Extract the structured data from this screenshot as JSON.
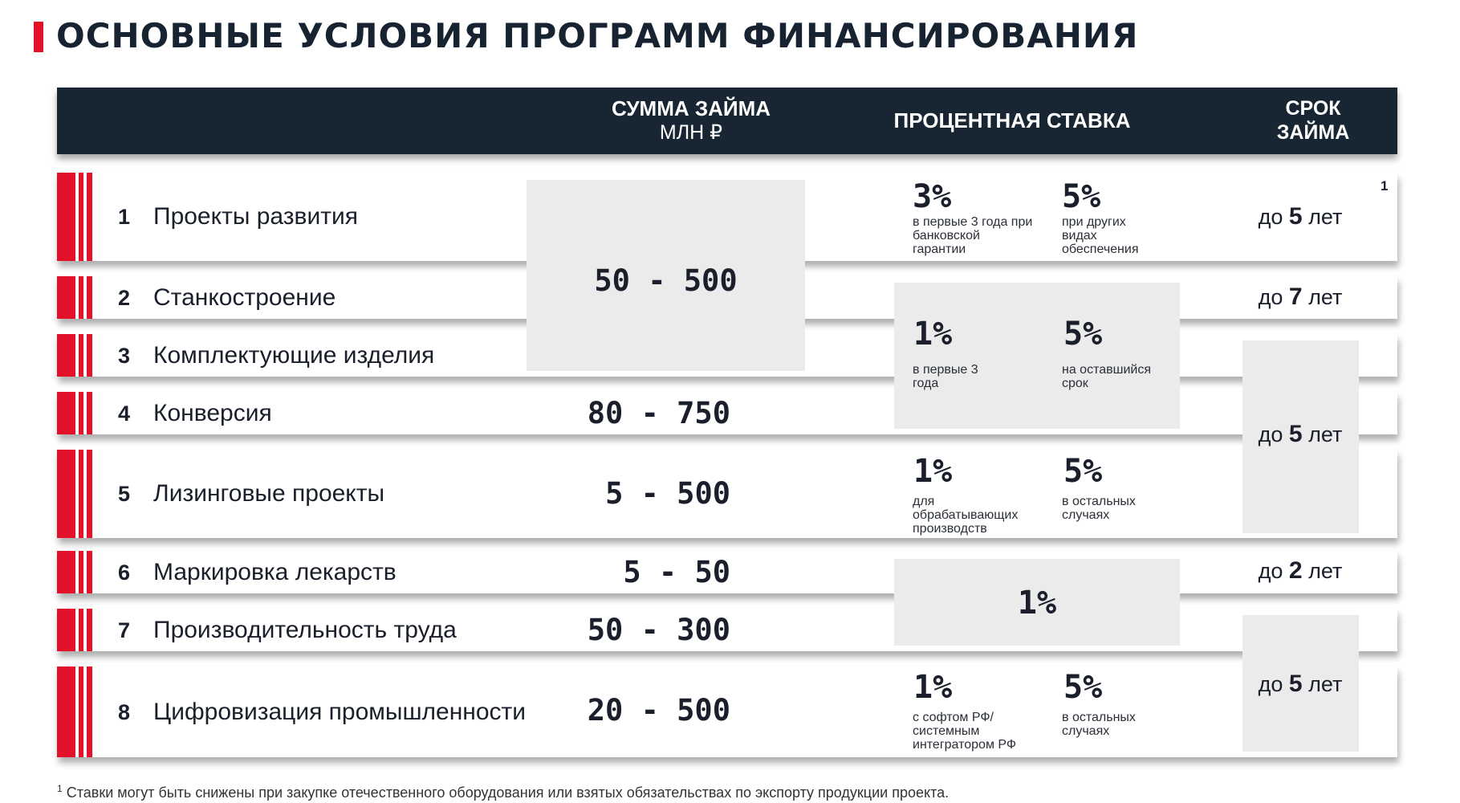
{
  "title": "ОСНОВНЫЕ УСЛОВИЯ ПРОГРАММ ФИНАНСИРОВАНИЯ",
  "header": {
    "amount_line1": "СУММА ЗАЙМА",
    "amount_line2": "МЛН ₽",
    "rate": "ПРОЦЕНТНАЯ СТАВКА",
    "term_line1": "СРОК",
    "term_line2": "ЗАЙМА"
  },
  "footnote_mark": "1",
  "programs": [
    {
      "num": "1",
      "name": "Проекты развития"
    },
    {
      "num": "2",
      "name": "Станкостроение"
    },
    {
      "num": "3",
      "name": "Комплектующие изделия"
    },
    {
      "num": "4",
      "name": "Конверсия"
    },
    {
      "num": "5",
      "name": "Лизинговые проекты"
    },
    {
      "num": "6",
      "name": "Маркировка лекарств"
    },
    {
      "num": "7",
      "name": "Производительность труда"
    },
    {
      "num": "8",
      "name": "Цифровизация промышленности"
    }
  ],
  "amounts": {
    "rows_1_3": "50 - 500",
    "row_4": "80 - 750",
    "row_5": "5 - 500",
    "row_6": "5 - 50",
    "row_7": "50 - 300",
    "row_8": "20 - 500"
  },
  "rates": {
    "row_1": {
      "a": "3%",
      "a_cap": "в первые 3 года при банковской гарантии",
      "b": "5%",
      "b_cap": "при других видах обеспечения"
    },
    "rows_2_4": {
      "a": "1%",
      "a_cap": "в первые 3 года",
      "b": "5%",
      "b_cap": "на оставшийся срок"
    },
    "row_5": {
      "a": "1%",
      "a_cap": "для обрабатывающих производств",
      "b": "5%",
      "b_cap": "в остальных случаях"
    },
    "rows_6_7": {
      "a": "1%"
    },
    "row_8": {
      "a": "1%",
      "a_cap": "с софтом РФ/ системным интегратором РФ",
      "b": "5%",
      "b_cap": "в остальных случаях"
    }
  },
  "terms": {
    "prefix": "до",
    "suffix": "лет",
    "row_1": "5",
    "row_2": "7",
    "rows_3_5": "5",
    "row_6": "2",
    "rows_7_8": "5"
  },
  "footnote": {
    "sup": "1",
    "text": "Ставки могут быть снижены при закупке отечественного оборудования или взятых обязательствах по экспорту продукции проекта."
  }
}
